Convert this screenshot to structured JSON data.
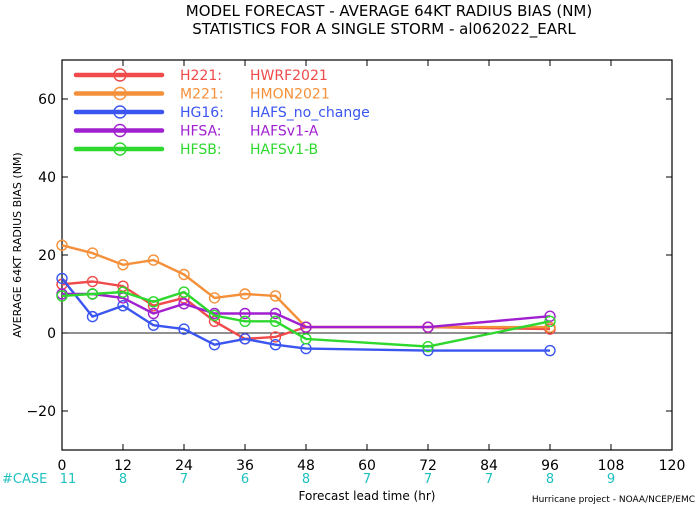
{
  "chart_data": {
    "type": "line",
    "title": "MODEL FORECAST - AVERAGE 64KT RADIUS BIAS (NM)",
    "subtitle": "STATISTICS FOR A SINGLE STORM - al062022_EARL",
    "xlabel": "Forecast lead time (hr)",
    "ylabel": "AVERAGE 64KT RADIUS BIAS (NM)",
    "xlim": [
      0,
      120
    ],
    "ylim": [
      -30,
      70
    ],
    "x_ticks": [
      0,
      12,
      24,
      36,
      48,
      60,
      72,
      84,
      96,
      108,
      120
    ],
    "y_ticks": [
      -20,
      0,
      20,
      40,
      60
    ],
    "zero_line": true,
    "legend_position": "top-left",
    "case_label": "#CASE",
    "case_counts": [
      {
        "x": 0,
        "n": "11"
      },
      {
        "x": 12,
        "n": "8"
      },
      {
        "x": 24,
        "n": "7"
      },
      {
        "x": 36,
        "n": "6"
      },
      {
        "x": 48,
        "n": "8"
      },
      {
        "x": 60,
        "n": "7"
      },
      {
        "x": 72,
        "n": "7"
      },
      {
        "x": 84,
        "n": "7"
      },
      {
        "x": 96,
        "n": "8"
      },
      {
        "x": 108,
        "n": "9"
      }
    ],
    "series": [
      {
        "code": "H221:",
        "name": "HWRF2021",
        "color": "#f04a4a",
        "points": [
          [
            0,
            12.5
          ],
          [
            6,
            13.2
          ],
          [
            12,
            12
          ],
          [
            18,
            7
          ],
          [
            24,
            9
          ],
          [
            30,
            3
          ],
          [
            36,
            -1.5
          ],
          [
            42,
            -1
          ],
          [
            48,
            1.5
          ],
          [
            72,
            1.5
          ],
          [
            96,
            1
          ]
        ]
      },
      {
        "code": "M221:",
        "name": "HMON2021",
        "color": "#f5903a",
        "points": [
          [
            0,
            22.5
          ],
          [
            6,
            20.5
          ],
          [
            12,
            17.5
          ],
          [
            18,
            18.7
          ],
          [
            24,
            15
          ],
          [
            30,
            9
          ],
          [
            36,
            10
          ],
          [
            42,
            9.5
          ],
          [
            48,
            1.5
          ],
          [
            72,
            1.5
          ],
          [
            96,
            1.5
          ]
        ]
      },
      {
        "code": "HG16:",
        "name": "HAFS_no_change",
        "color": "#3a55f0",
        "points": [
          [
            0,
            14
          ],
          [
            6,
            4.2
          ],
          [
            12,
            7
          ],
          [
            18,
            2
          ],
          [
            24,
            1
          ],
          [
            30,
            -3
          ],
          [
            36,
            -1.5
          ],
          [
            42,
            -3
          ],
          [
            48,
            -4
          ],
          [
            72,
            -4.5
          ],
          [
            96,
            -4.5
          ]
        ]
      },
      {
        "code": "HFSA:",
        "name": "HAFSv1-A",
        "color": "#a020d0",
        "points": [
          [
            0,
            10
          ],
          [
            6,
            10
          ],
          [
            12,
            9
          ],
          [
            18,
            5
          ],
          [
            24,
            7.5
          ],
          [
            30,
            5
          ],
          [
            36,
            5
          ],
          [
            42,
            5
          ],
          [
            48,
            1.5
          ],
          [
            72,
            1.5
          ],
          [
            96,
            4.3
          ]
        ]
      },
      {
        "code": "HFSB:",
        "name": "HAFSv1-B",
        "color": "#2ed82e",
        "points": [
          [
            0,
            9.5
          ],
          [
            6,
            10
          ],
          [
            12,
            10.5
          ],
          [
            18,
            8
          ],
          [
            24,
            10.5
          ],
          [
            30,
            4.5
          ],
          [
            36,
            3
          ],
          [
            42,
            3
          ],
          [
            48,
            -1.5
          ],
          [
            72,
            -3.5
          ],
          [
            96,
            3
          ]
        ]
      }
    ],
    "case_color": "#20c0c0"
  },
  "footer": {
    "credit": "Hurricane project - NOAA/NCEP/EMC"
  }
}
